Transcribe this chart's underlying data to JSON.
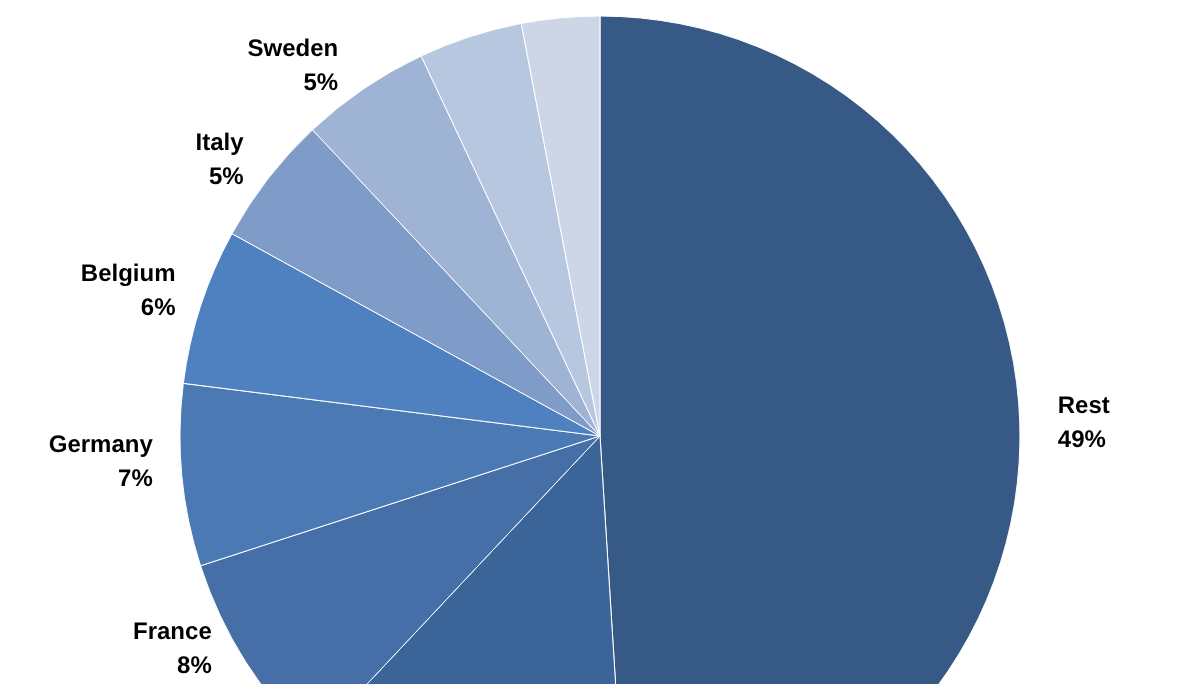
{
  "chart_data": {
    "type": "pie",
    "categories": [
      "Rest",
      null,
      "France",
      "Germany",
      "Belgium",
      "Italy",
      "Sweden",
      null,
      null
    ],
    "values": [
      49,
      13,
      8,
      7,
      6,
      5,
      5,
      4,
      3
    ],
    "value_labels": [
      "49%",
      null,
      "8%",
      "7%",
      "6%",
      "5%",
      "5%",
      null,
      null
    ],
    "colors": [
      "#365a85",
      "#3b6499",
      "#456fa6",
      "#4a79b3",
      "#4f81c0",
      "#7f9cc8",
      "#9fb3d4",
      "#b8c7e0",
      "#ccd6e7"
    ],
    "legend": false
  }
}
